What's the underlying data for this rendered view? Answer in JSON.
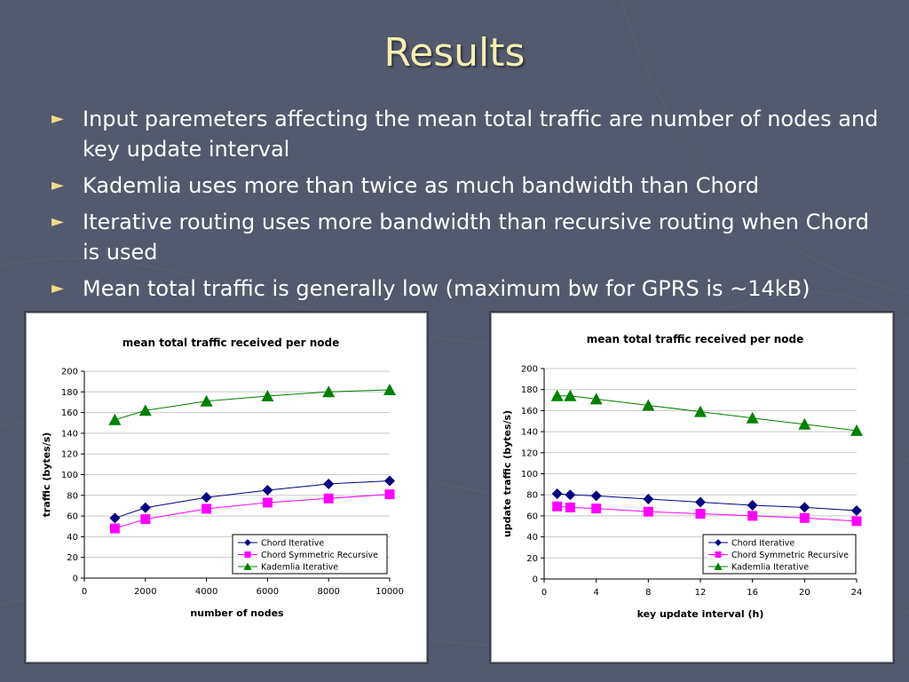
{
  "slide": {
    "title": "Results",
    "bullets": [
      "Input paremeters affecting the mean total traffic are number of nodes and key update interval",
      "Kademlia uses more than twice as much bandwidth than Chord",
      "Iterative routing uses more bandwidth than recursive routing when Chord is used",
      "Mean total traffic is generally low (maximum bw for GPRS is ~14kB)"
    ],
    "bullet_glyph": "►",
    "colors": {
      "background": "#535a6d",
      "title": "#f5efb2",
      "text": "#ffffff",
      "bullet": "#f2d98c"
    }
  },
  "chart_data": [
    {
      "type": "line",
      "title": "mean total traffic received per node",
      "xlabel": "number of nodes",
      "ylabel": "traffic (bytes/s)",
      "x_ticks": [
        0,
        2000,
        4000,
        6000,
        8000,
        10000
      ],
      "y_ticks": [
        0,
        20,
        40,
        60,
        80,
        100,
        120,
        140,
        160,
        180,
        200
      ],
      "xlim": [
        0,
        10000
      ],
      "ylim": [
        0,
        200
      ],
      "grid": "horizontal",
      "legend_position": "bottom-right",
      "x": [
        1000,
        2000,
        4000,
        6000,
        8000,
        10000
      ],
      "series": [
        {
          "name": "Chord Iterative",
          "marker": "diamond",
          "color": "#000080",
          "values": [
            58,
            68,
            78,
            85,
            91,
            94
          ]
        },
        {
          "name": "Chord Symmetric Recursive",
          "marker": "square",
          "color": "#ff00ff",
          "values": [
            48,
            57,
            67,
            73,
            77,
            81
          ]
        },
        {
          "name": "Kademlia Iterative",
          "marker": "triangle",
          "color": "#008000",
          "values": [
            153,
            162,
            171,
            176,
            180,
            182
          ]
        }
      ]
    },
    {
      "type": "line",
      "title": "mean total traffic received per node",
      "xlabel": "key update interval (h)",
      "ylabel": "update traffic (bytes/s)",
      "x_ticks": [
        0,
        4,
        8,
        12,
        16,
        20,
        24
      ],
      "y_ticks": [
        0,
        20,
        40,
        60,
        80,
        100,
        120,
        140,
        160,
        180,
        200
      ],
      "xlim": [
        0,
        24
      ],
      "ylim": [
        0,
        200
      ],
      "grid": "horizontal",
      "legend_position": "bottom-right",
      "x": [
        1,
        2,
        4,
        8,
        12,
        16,
        20,
        24
      ],
      "series": [
        {
          "name": "Chord Iterative",
          "marker": "diamond",
          "color": "#000080",
          "values": [
            81,
            80,
            79,
            76,
            73,
            70,
            68,
            65
          ]
        },
        {
          "name": "Chord Symmetric Recursive",
          "marker": "square",
          "color": "#ff00ff",
          "values": [
            69,
            68,
            67,
            64,
            62,
            60,
            58,
            55
          ]
        },
        {
          "name": "Kademlia Iterative",
          "marker": "triangle",
          "color": "#008000",
          "values": [
            174,
            174,
            171,
            165,
            159,
            153,
            147,
            141
          ]
        }
      ]
    }
  ]
}
